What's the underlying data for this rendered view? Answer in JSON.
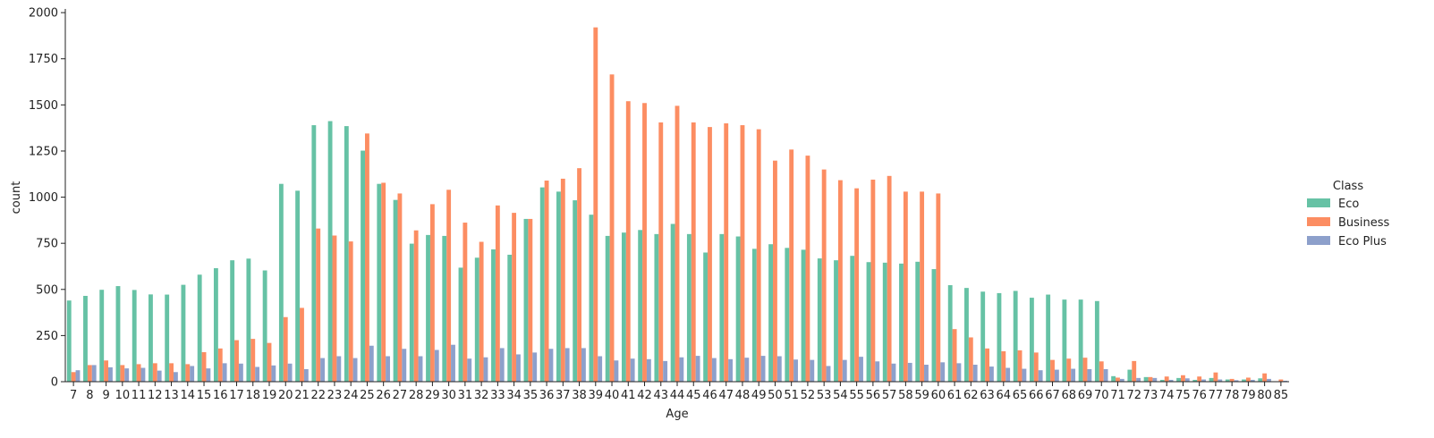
{
  "chart_data": {
    "type": "bar",
    "xlabel": "Age",
    "ylabel": "count",
    "ylim": [
      0,
      2020
    ],
    "yticks": [
      0,
      250,
      500,
      750,
      1000,
      1250,
      1500,
      1750,
      2000
    ],
    "legend": {
      "title": "Class",
      "placement": "right"
    },
    "categories": [
      "7",
      "8",
      "9",
      "10",
      "11",
      "12",
      "13",
      "14",
      "15",
      "16",
      "17",
      "18",
      "19",
      "20",
      "21",
      "22",
      "23",
      "24",
      "25",
      "26",
      "27",
      "28",
      "29",
      "30",
      "31",
      "32",
      "33",
      "34",
      "35",
      "36",
      "37",
      "38",
      "39",
      "40",
      "41",
      "42",
      "43",
      "44",
      "45",
      "46",
      "47",
      "48",
      "49",
      "50",
      "51",
      "52",
      "53",
      "54",
      "55",
      "56",
      "57",
      "58",
      "59",
      "60",
      "61",
      "62",
      "63",
      "64",
      "65",
      "66",
      "67",
      "68",
      "69",
      "70",
      "71",
      "72",
      "73",
      "74",
      "75",
      "76",
      "77",
      "78",
      "79",
      "80",
      "85"
    ],
    "series": [
      {
        "name": "Eco",
        "color": "#66c2a5",
        "values": [
          440,
          465,
          498,
          518,
          497,
          473,
          472,
          525,
          580,
          615,
          658,
          667,
          603,
          1072,
          1035,
          1390,
          1412,
          1385,
          1252,
          1072,
          985,
          748,
          795,
          790,
          618,
          672,
          717,
          688,
          882,
          1053,
          1030,
          983,
          905,
          790,
          808,
          822,
          800,
          855,
          800,
          700,
          800,
          787,
          720,
          745,
          725,
          715,
          668,
          658,
          682,
          648,
          645,
          640,
          650,
          610,
          523,
          508,
          488,
          480,
          492,
          455,
          472,
          445,
          445,
          437,
          30,
          65,
          25,
          10,
          20,
          10,
          20,
          12,
          12,
          18,
          0
        ]
      },
      {
        "name": "Business",
        "color": "#fc8d62",
        "values": [
          52,
          90,
          115,
          90,
          95,
          100,
          100,
          95,
          160,
          180,
          225,
          232,
          210,
          350,
          400,
          830,
          792,
          760,
          1345,
          1078,
          1020,
          820,
          962,
          1040,
          862,
          758,
          955,
          915,
          882,
          1090,
          1100,
          1157,
          1920,
          1665,
          1520,
          1510,
          1405,
          1495,
          1405,
          1380,
          1400,
          1390,
          1368,
          1198,
          1258,
          1225,
          1150,
          1092,
          1048,
          1095,
          1115,
          1030,
          1030,
          1020,
          285,
          240,
          180,
          165,
          170,
          158,
          118,
          125,
          130,
          110,
          22,
          112,
          25,
          28,
          35,
          28,
          50,
          15,
          22,
          45,
          12
        ]
      },
      {
        "name": "Eco Plus",
        "color": "#8da0cb",
        "values": [
          62,
          90,
          78,
          72,
          75,
          60,
          52,
          85,
          72,
          100,
          98,
          80,
          88,
          98,
          68,
          128,
          138,
          128,
          195,
          138,
          178,
          138,
          172,
          200,
          125,
          132,
          182,
          148,
          158,
          178,
          182,
          182,
          138,
          115,
          125,
          122,
          112,
          132,
          140,
          128,
          122,
          130,
          140,
          138,
          120,
          118,
          85,
          118,
          135,
          110,
          98,
          102,
          92,
          105,
          100,
          92,
          82,
          75,
          70,
          62,
          65,
          70,
          68,
          68,
          15,
          20,
          20,
          10,
          18,
          12,
          12,
          8,
          10,
          15,
          5
        ]
      }
    ]
  }
}
